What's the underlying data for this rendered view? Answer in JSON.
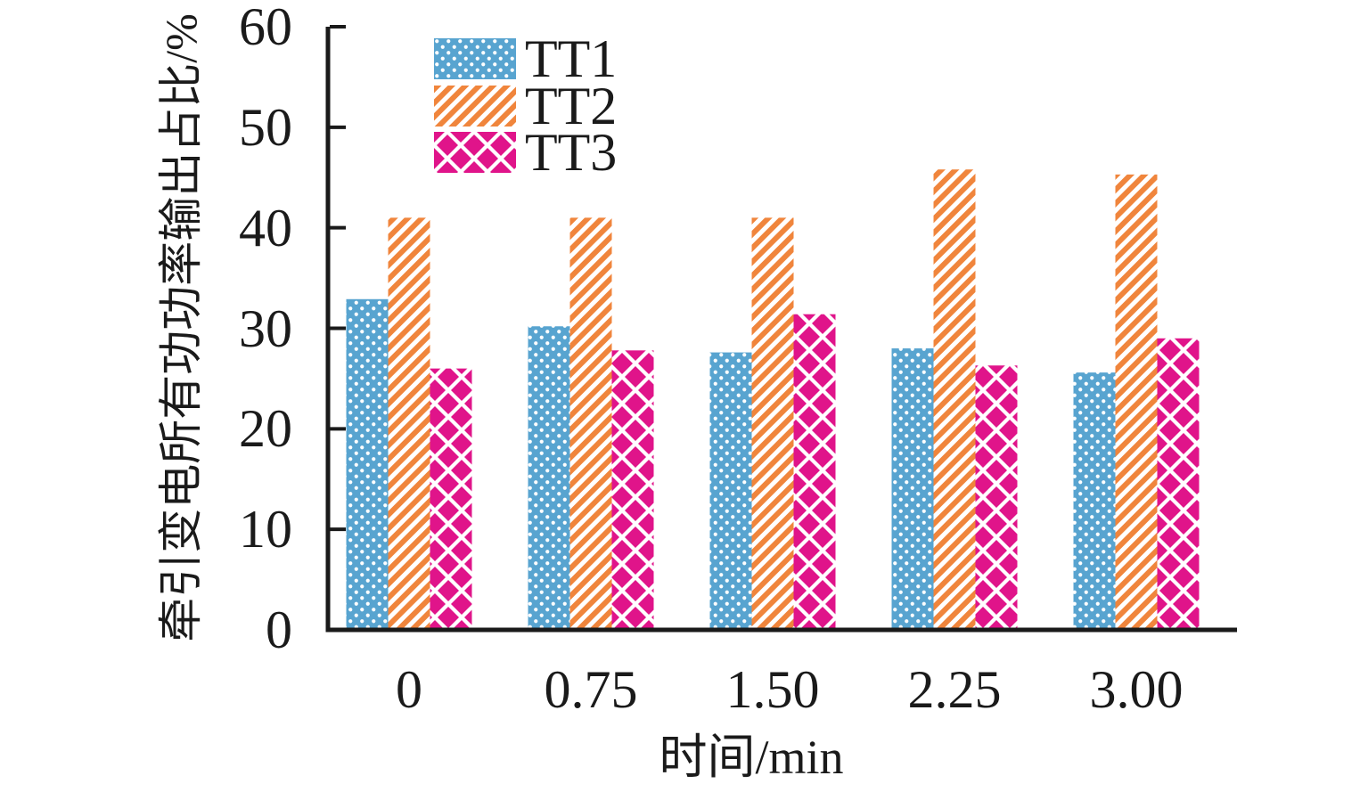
{
  "chart_data": {
    "type": "bar",
    "title": "",
    "categories": [
      "0",
      "0.75",
      "1.50",
      "2.25",
      "3.00"
    ],
    "series": [
      {
        "name": "TT1",
        "pattern": "white-dots-on-blue",
        "color": "#58A4D0",
        "values": [
          32.9,
          30.2,
          27.6,
          28.0,
          25.6
        ]
      },
      {
        "name": "TT2",
        "pattern": "orange-diagonal-stripes",
        "color": "#F0853C",
        "values": [
          41.0,
          41.0,
          41.0,
          45.8,
          45.3
        ]
      },
      {
        "name": "TT3",
        "pattern": "magenta-diamond-checker",
        "color": "#E0148A",
        "values": [
          26.0,
          27.8,
          31.4,
          26.3,
          29.0
        ]
      }
    ],
    "xlabel": "时间/min",
    "ylabel": "牵引变电所有功功率输出占比/%",
    "ylim": [
      0,
      60
    ],
    "yticks": [
      0,
      10,
      20,
      30,
      40,
      50,
      60
    ],
    "grid": false,
    "legend_position": "upper-left-inside",
    "axis_color": "#1a1a1a",
    "background_color": "#ffffff",
    "x_unit": "min",
    "y_unit": "%"
  }
}
